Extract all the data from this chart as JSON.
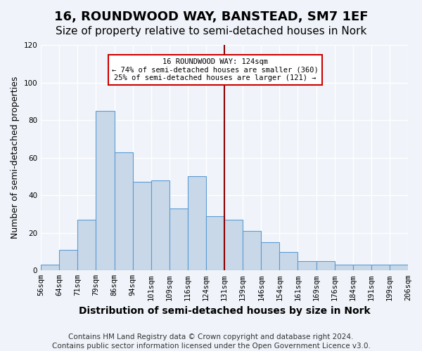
{
  "title1": "16, ROUNDWOOD WAY, BANSTEAD, SM7 1EF",
  "title2": "Size of property relative to semi-detached houses in Nork",
  "xlabel": "Distribution of semi-detached houses by size in Nork",
  "ylabel": "Number of semi-detached properties",
  "bin_labels": [
    "56sqm",
    "64sqm",
    "71sqm",
    "79sqm",
    "86sqm",
    "94sqm",
    "101sqm",
    "109sqm",
    "116sqm",
    "124sqm",
    "131sqm",
    "139sqm",
    "146sqm",
    "154sqm",
    "161sqm",
    "169sqm",
    "176sqm",
    "184sqm",
    "191sqm",
    "199sqm",
    "206sqm"
  ],
  "bar_heights": [
    3,
    11,
    27,
    85,
    63,
    47,
    48,
    33,
    50,
    29,
    27,
    21,
    15,
    10,
    5,
    5,
    3,
    3,
    3,
    3
  ],
  "bar_color": "#c8d8e8",
  "bar_edge_color": "#5b9bd5",
  "vline_x_bin": 9,
  "vline_color": "#8b0000",
  "annotation_text": "16 ROUNDWOOD WAY: 124sqm\n← 74% of semi-detached houses are smaller (360)\n25% of semi-detached houses are larger (121) →",
  "annotation_box_color": "#ffffff",
  "annotation_box_edge": "#cc0000",
  "ylim": [
    0,
    120
  ],
  "yticks": [
    0,
    20,
    40,
    60,
    80,
    100,
    120
  ],
  "footer1": "Contains HM Land Registry data © Crown copyright and database right 2024.",
  "footer2": "Contains public sector information licensed under the Open Government Licence v3.0.",
  "bg_color": "#f0f4fa",
  "grid_color": "#ffffff",
  "title1_fontsize": 13,
  "title2_fontsize": 11,
  "xlabel_fontsize": 10,
  "ylabel_fontsize": 9,
  "tick_fontsize": 7.5,
  "footer_fontsize": 7.5
}
